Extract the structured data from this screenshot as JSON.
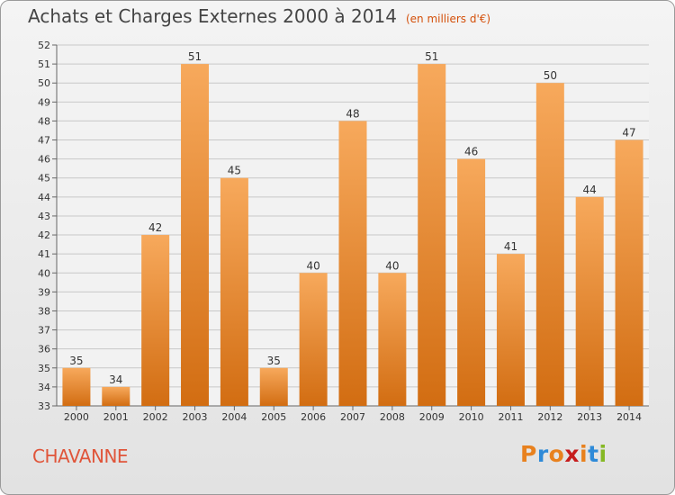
{
  "header": {
    "title": "Achats et Charges Externes 2000 à 2014",
    "unit": "(en milliers d'€)"
  },
  "footer": {
    "commune": "CHAVANNE",
    "brand_letters": [
      "P",
      "r",
      "o",
      "x",
      "i",
      "t",
      "i"
    ],
    "brand_colors": [
      "#e8811e",
      "#2e8ad8",
      "#e8811e",
      "#c61c1c",
      "#e8811e",
      "#2e8ad8",
      "#85b824"
    ]
  },
  "colors": {
    "bar_top": "#f7a95c",
    "bar_bottom": "#d26d12",
    "grid": "#c8c8c8",
    "axis": "#666666",
    "text": "#333333"
  },
  "chart_data": {
    "type": "bar",
    "categories": [
      "2000",
      "2001",
      "2002",
      "2003",
      "2004",
      "2005",
      "2006",
      "2007",
      "2008",
      "2009",
      "2010",
      "2011",
      "2012",
      "2013",
      "2014"
    ],
    "values": [
      35,
      34,
      42,
      51,
      45,
      35,
      40,
      48,
      40,
      51,
      46,
      41,
      50,
      44,
      47
    ],
    "title": "Achats et Charges Externes 2000 à 2014",
    "ylim": [
      33,
      52
    ],
    "yticks": [
      33,
      34,
      35,
      36,
      37,
      38,
      39,
      40,
      41,
      42,
      43,
      44,
      45,
      46,
      47,
      48,
      49,
      50,
      51,
      52
    ],
    "grid": true
  }
}
